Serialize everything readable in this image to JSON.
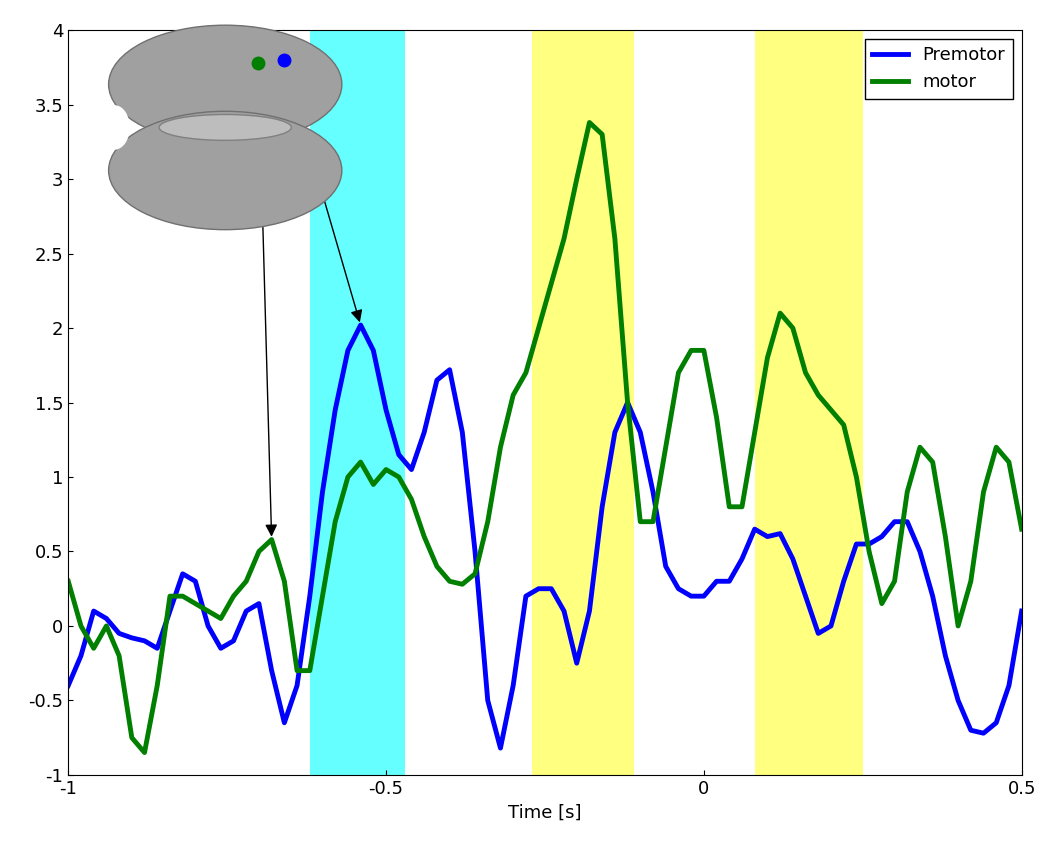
{
  "chart_data": {
    "type": "line",
    "x_label": "Time [s]",
    "x": [
      -1.0,
      -0.98,
      -0.96,
      -0.94,
      -0.92,
      -0.9,
      -0.88,
      -0.86,
      -0.84,
      -0.82,
      -0.8,
      -0.78,
      -0.76,
      -0.74,
      -0.72,
      -0.7,
      -0.68,
      -0.66,
      -0.64,
      -0.62,
      -0.6,
      -0.58,
      -0.56,
      -0.54,
      -0.52,
      -0.5,
      -0.48,
      -0.46,
      -0.44,
      -0.42,
      -0.4,
      -0.38,
      -0.36,
      -0.34,
      -0.32,
      -0.3,
      -0.28,
      -0.26,
      -0.24,
      -0.22,
      -0.2,
      -0.18,
      -0.16,
      -0.14,
      -0.12,
      -0.1,
      -0.08,
      -0.06,
      -0.04,
      -0.02,
      0.0,
      0.02,
      0.04,
      0.06,
      0.08,
      0.1,
      0.12,
      0.14,
      0.16,
      0.18,
      0.2,
      0.22,
      0.24,
      0.26,
      0.28,
      0.3,
      0.32,
      0.34,
      0.36,
      0.38,
      0.4,
      0.42,
      0.44,
      0.46,
      0.48,
      0.5
    ],
    "series": [
      {
        "name": "Premotor",
        "color": "#0000ff",
        "line_style": "solid",
        "values": [
          -0.4,
          -0.2,
          0.1,
          0.05,
          -0.05,
          -0.08,
          -0.1,
          -0.15,
          0.1,
          0.35,
          0.3,
          0.0,
          -0.15,
          -0.1,
          0.1,
          0.15,
          -0.3,
          -0.65,
          -0.4,
          0.2,
          0.9,
          1.45,
          1.85,
          2.02,
          1.85,
          1.45,
          1.15,
          1.05,
          1.3,
          1.65,
          1.72,
          1.3,
          0.5,
          -0.5,
          -0.82,
          -0.4,
          0.2,
          0.25,
          0.25,
          0.1,
          -0.25,
          0.1,
          0.8,
          1.3,
          1.5,
          1.3,
          0.9,
          0.4,
          0.25,
          0.2,
          0.2,
          0.3,
          0.3,
          0.45,
          0.65,
          0.6,
          0.62,
          0.45,
          0.2,
          -0.05,
          0.0,
          0.3,
          0.55,
          0.55,
          0.6,
          0.7,
          0.7,
          0.5,
          0.2,
          -0.2,
          -0.5,
          -0.7,
          -0.72,
          -0.65,
          -0.4,
          0.1
        ]
      },
      {
        "name": "motor",
        "color": "#007f00",
        "line_style": "solid",
        "values": [
          0.3,
          0.0,
          -0.15,
          0.0,
          -0.2,
          -0.75,
          -0.85,
          -0.4,
          0.2,
          0.2,
          0.15,
          0.1,
          0.05,
          0.2,
          0.3,
          0.5,
          0.58,
          0.3,
          -0.3,
          -0.3,
          0.2,
          0.7,
          1.0,
          1.1,
          0.95,
          1.05,
          1.0,
          0.85,
          0.6,
          0.4,
          0.3,
          0.28,
          0.35,
          0.7,
          1.2,
          1.55,
          1.7,
          2.0,
          2.3,
          2.6,
          3.0,
          3.38,
          3.3,
          2.6,
          1.5,
          0.7,
          0.7,
          1.2,
          1.7,
          1.85,
          1.85,
          1.4,
          0.8,
          0.8,
          1.3,
          1.8,
          2.1,
          2.0,
          1.7,
          1.55,
          1.45,
          1.35,
          1.0,
          0.5,
          0.15,
          0.3,
          0.9,
          1.2,
          1.1,
          0.6,
          0.0,
          0.3,
          0.9,
          1.2,
          1.1,
          0.65
        ]
      }
    ],
    "shaded_regions": [
      {
        "start": -0.62,
        "end": -0.47,
        "color": "#66ffff"
      },
      {
        "start": -0.27,
        "end": -0.11,
        "color": "#ffff80"
      },
      {
        "start": 0.08,
        "end": 0.25,
        "color": "#ffff80"
      }
    ],
    "arrows": [
      {
        "series": "motor",
        "x": -0.68
      },
      {
        "series": "Premotor",
        "x": -0.54
      }
    ],
    "xlim": [
      -1,
      0.5
    ],
    "xticks": [
      -1,
      -0.5,
      0,
      0.5
    ],
    "ylim": [
      -1,
      4
    ],
    "yticks": [
      -1,
      -0.5,
      0,
      0.5,
      1,
      1.5,
      2,
      2.5,
      3,
      3.5,
      4
    ],
    "grid": false,
    "legend": "upper right"
  }
}
